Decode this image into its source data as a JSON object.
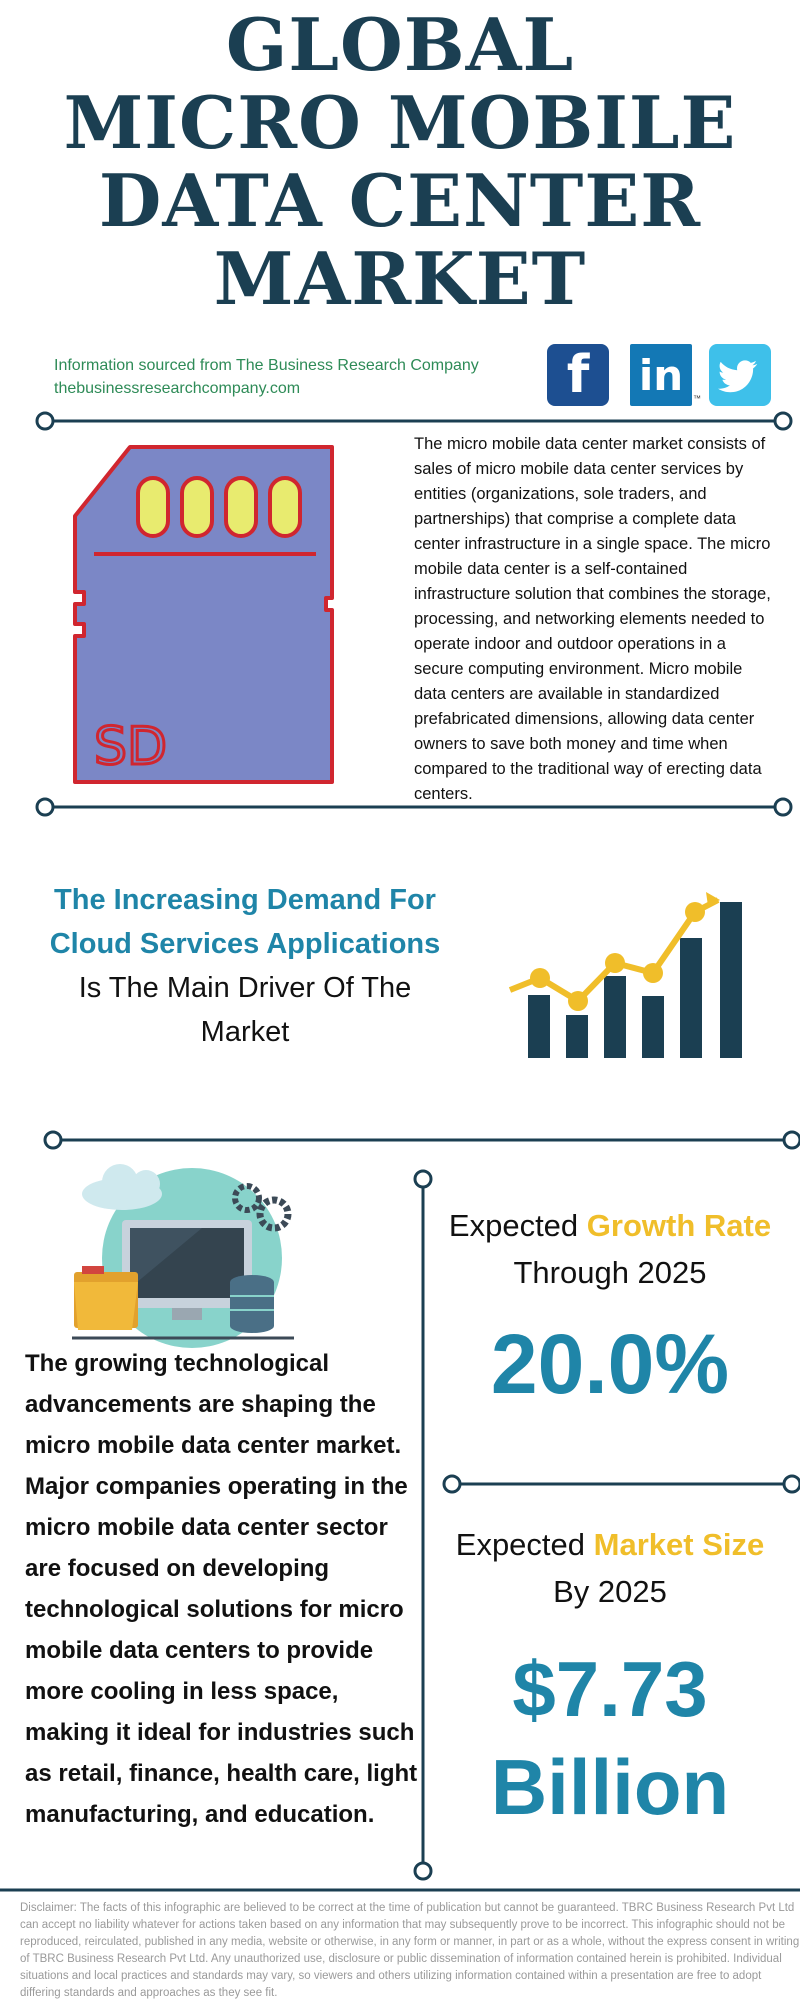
{
  "title": {
    "line1": "GLOBAL",
    "line2": "MICRO MOBILE",
    "line3": "DATA CENTER",
    "line4": "MARKET"
  },
  "source": {
    "line1": "Information sourced from The Business Research Company",
    "line2": "thebusinessresearchcompany.com"
  },
  "social": {
    "facebook": "f",
    "linkedin": "in",
    "linkedin_tm": "™"
  },
  "sd_card": {
    "label": "SD"
  },
  "description": "The micro mobile data center market consists of sales of micro mobile data center services by entities (organizations, sole traders, and partnerships) that comprise a complete data center infrastructure in a single space. The micro mobile data center is a self-contained infrastructure solution that combines the storage, processing, and networking elements needed to operate indoor and outdoor operations in a secure computing environment. Micro mobile data centers are available in standardized prefabricated dimensions, allowing data center owners to save both money and time when compared to the traditional way of erecting data centers.",
  "driver": {
    "highlight": "The Increasing Demand For Cloud Services Applications",
    "rest": "Is The Main Driver Of The Market"
  },
  "tech_text": "The growing technological advancements are shaping the micro mobile data center market. Major companies operating in the micro mobile data center sector are focused on developing technological solutions for micro mobile data centers to provide more cooling in less space, making it ideal for industries such as retail, finance, health care, light manufacturing, and education.",
  "growth": {
    "prefix": "Expected",
    "highlight": "Growth Rate",
    "suffix": "Through 2025",
    "value": "20.0%"
  },
  "market_size": {
    "prefix": "Expected",
    "highlight": "Market Size",
    "suffix": "By 2025",
    "value_line1": "$7.73",
    "value_line2": "Billion"
  },
  "disclaimer": "Disclaimer: The facts of this infographic are believed to be correct at the time of publication but cannot be guaranteed. TBRC Business Research Pvt Ltd can accept no liability whatever for actions taken based on any information that may subsequently prove to be incorrect. This infographic should not be reproduced, reirculated, published in any media, website or otherwise, in any form or manner, in part or as a whole, without the express consent in writing of TBRC Business Research Pvt Ltd. Any unauthorized use, disclosure or public dissemination of information contained herein is prohibited. Individual situations and local practices and standards may vary, so viewers and others utilizing information contained within a presentation are free to adopt differing standards and approaches as they see fit.",
  "colors": {
    "navy": "#1b3f52",
    "accent_blue": "#1f85a8",
    "accent_yellow": "#f0be2a",
    "source_green": "#2e8b57"
  }
}
